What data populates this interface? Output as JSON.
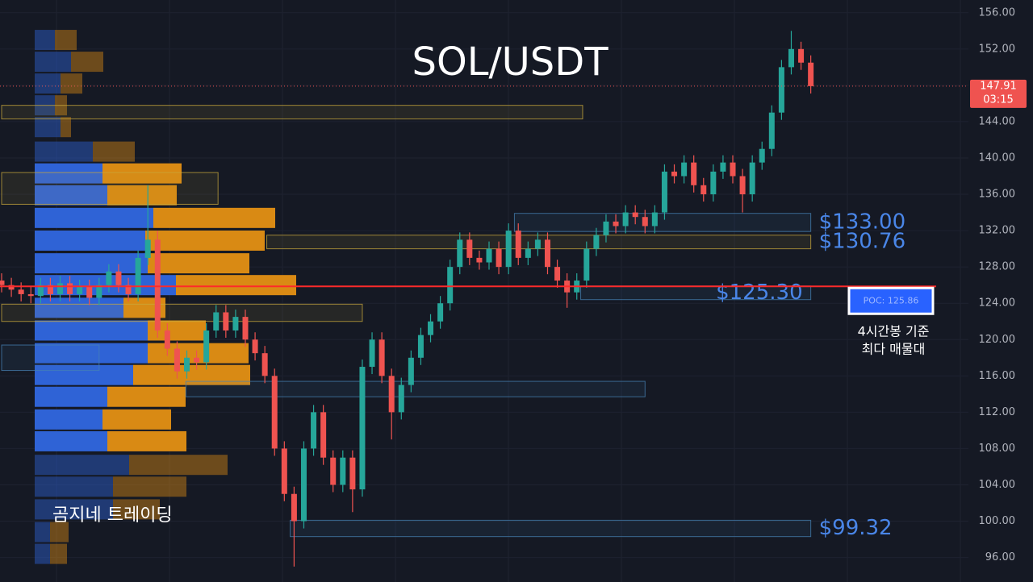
{
  "chart_data": {
    "type": "candlestick",
    "title": "SOL/USDT",
    "watermark": "곰지네 트레이딩",
    "note": [
      "4시간봉 기준",
      "최다 매물대"
    ],
    "ylim": [
      93.3,
      157.4
    ],
    "yticks": [
      {
        "value": 96,
        "label": "96.00"
      },
      {
        "value": 100,
        "label": "100.00"
      },
      {
        "value": 104,
        "label": "104.00"
      },
      {
        "value": 108,
        "label": "108.00"
      },
      {
        "value": 112,
        "label": "112.00"
      },
      {
        "value": 116,
        "label": "116.00"
      },
      {
        "value": 120,
        "label": "120.00"
      },
      {
        "value": 124,
        "label": "124.00"
      },
      {
        "value": 128,
        "label": "128.00"
      },
      {
        "value": 132,
        "label": "132.00"
      },
      {
        "value": 136,
        "label": "136.00"
      },
      {
        "value": 140,
        "label": "140.00"
      },
      {
        "value": 144,
        "label": "144.00"
      },
      {
        "value": 148,
        "label": "148.00"
      },
      {
        "value": 152,
        "label": "152.00"
      },
      {
        "value": 156,
        "label": "156.00"
      }
    ],
    "grid": true,
    "colors": {
      "up": "#26a69a",
      "down": "#ef5350"
    },
    "open": [
      126.5,
      126,
      125.5,
      125,
      124.8,
      126,
      125,
      126.2,
      125,
      125.8,
      124.6,
      126,
      127.5,
      126,
      125,
      129,
      131,
      121,
      119,
      116.5,
      118,
      117.5,
      121,
      123,
      121,
      122.5,
      120,
      118.5,
      116,
      108,
      103,
      100,
      108,
      112,
      107,
      104,
      107,
      103.5,
      117,
      120,
      116,
      112,
      115,
      118,
      120.5,
      122,
      124,
      128,
      131,
      129,
      128.5,
      130,
      128,
      132,
      129,
      130,
      131,
      128,
      126.5,
      125.2,
      126.5,
      130,
      131.5,
      133,
      132.5,
      134,
      133.5,
      132.5,
      134,
      138.5,
      138,
      139.5,
      137,
      136,
      138.5,
      139.5,
      138,
      136,
      139.5,
      141,
      145,
      150,
      152,
      150.5
    ],
    "high": [
      127.3,
      126.8,
      126.3,
      125.8,
      126.8,
      126.8,
      127,
      127,
      126.6,
      126.6,
      126.8,
      128.3,
      128.3,
      126.8,
      129.8,
      137,
      132,
      121.8,
      119.8,
      118.8,
      118.8,
      121.8,
      123.8,
      123.8,
      123.3,
      123.3,
      120.8,
      119.3,
      116.8,
      108.8,
      103.8,
      108.8,
      112.8,
      112.8,
      107.8,
      107.8,
      107.8,
      117.8,
      120.8,
      120.8,
      116.8,
      115.8,
      118.8,
      121.3,
      122.8,
      124.8,
      128.8,
      131.8,
      131.8,
      129.8,
      130.8,
      130.8,
      132.8,
      132.8,
      130.8,
      131.8,
      131.8,
      128.8,
      127.3,
      127.3,
      130.8,
      132.3,
      133.8,
      133.8,
      134.8,
      134.8,
      134.3,
      134.8,
      139.3,
      139.3,
      140.3,
      140.3,
      137.8,
      139.3,
      140.3,
      140.3,
      138.8,
      140.3,
      141.8,
      145.8,
      150.8,
      154,
      152.8,
      151.3
    ],
    "low": [
      125.2,
      124.7,
      124.2,
      124,
      124,
      124.2,
      124.2,
      124.2,
      124.2,
      123.8,
      123.8,
      125.2,
      125.2,
      124.2,
      124.2,
      128.2,
      120.2,
      118.2,
      115.7,
      115.7,
      116.7,
      116.7,
      120.2,
      120.2,
      120.2,
      119.2,
      117.7,
      115.2,
      107.2,
      102.2,
      95,
      99.2,
      107.2,
      106.2,
      103.2,
      103.2,
      101,
      102.7,
      116.2,
      115.2,
      109,
      111.2,
      114.2,
      117.2,
      119.7,
      121.2,
      123.2,
      127.2,
      128.2,
      127.7,
      127.7,
      127.2,
      127.2,
      128.2,
      128.2,
      129.2,
      127.2,
      125.7,
      123.5,
      124.4,
      125.7,
      129.2,
      130.7,
      131.7,
      131.7,
      132.7,
      131.7,
      131.7,
      133.2,
      137.2,
      137.2,
      136.2,
      135.2,
      135.2,
      137.7,
      137.2,
      134,
      135.2,
      138.7,
      140.2,
      144.2,
      149.2,
      149.7,
      147.1
    ],
    "close": [
      126,
      125.5,
      125,
      124.8,
      126,
      125,
      126.2,
      125,
      125.8,
      124.6,
      126,
      127.5,
      126,
      125,
      129,
      131,
      121,
      119,
      116.5,
      118,
      117.5,
      121,
      123,
      121,
      122.5,
      120,
      118.5,
      116,
      108,
      103,
      100,
      108,
      112,
      107,
      104,
      107,
      103.5,
      117,
      120,
      116,
      112,
      115,
      118,
      120.5,
      122,
      124,
      128,
      131,
      129,
      128.5,
      130,
      128,
      132,
      129,
      130,
      131,
      128,
      126.5,
      125.2,
      126.5,
      130,
      131.5,
      133,
      132.5,
      134,
      133.5,
      132.5,
      134,
      138.5,
      138,
      139.5,
      137,
      136,
      138.5,
      139.5,
      138,
      136,
      139.5,
      141,
      145,
      150,
      152,
      150.5,
      147.91
    ],
    "last_price": {
      "value": 147.91,
      "label": "147.91"
    },
    "countdown": "03:15",
    "poc": {
      "value": 125.86,
      "label": "POC: 125.86"
    },
    "zones": [
      {
        "low": 144.3,
        "high": 145.8,
        "start": 0,
        "end": 59.6,
        "color": "#c8a83c"
      },
      {
        "low": 134.9,
        "high": 138.4,
        "start": 0,
        "end": 22.2,
        "color": "#c8a83c"
      },
      {
        "low": 131.9,
        "high": 133.9,
        "start": 52.6,
        "end": 83,
        "color": "#4682b4",
        "label": "$133.00"
      },
      {
        "low": 130.0,
        "high": 131.5,
        "start": 27.2,
        "end": 83,
        "color": "#c8a83c",
        "label": "$130.76"
      },
      {
        "low": 124.4,
        "high": 125.9,
        "start": 59.4,
        "end": 83,
        "color": "#4682b4",
        "label": "$125.30"
      },
      {
        "low": 122.0,
        "high": 123.9,
        "start": 0,
        "end": 37,
        "color": "#c8a83c"
      },
      {
        "low": 116.6,
        "high": 119.4,
        "start": 0,
        "end": 10,
        "color": "#4682b4"
      },
      {
        "low": 113.7,
        "high": 115.4,
        "start": 18.9,
        "end": 66,
        "color": "#4682b4"
      },
      {
        "low": 98.3,
        "high": 100.1,
        "start": 29.6,
        "end": 83,
        "color": "#4682b4",
        "label": "$99.32"
      }
    ],
    "volume_profile": {
      "levels": [
        153.0,
        150.6,
        148.2,
        145.8,
        143.4,
        140.7,
        138.3,
        135.9,
        133.4,
        130.9,
        128.4,
        126.0,
        123.5,
        121.0,
        118.5,
        116.1,
        113.7,
        111.2,
        108.8,
        106.2,
        103.8,
        101.3,
        98.8,
        96.4
      ],
      "buy": [
        25,
        45,
        32,
        25,
        32,
        72,
        84,
        90,
        147,
        137,
        140,
        175,
        110,
        140,
        140,
        122,
        90,
        84,
        90,
        117,
        97,
        97,
        19,
        19
      ],
      "sell": [
        27,
        40,
        27,
        15,
        13,
        52,
        98,
        86,
        151,
        148,
        126,
        149,
        52,
        72,
        125,
        145,
        97,
        85,
        98,
        122,
        91,
        58,
        23,
        21
      ],
      "value_area": [
        107,
        139
      ]
    }
  }
}
